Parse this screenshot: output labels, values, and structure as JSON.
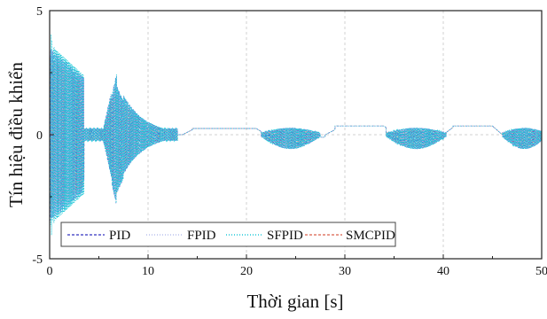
{
  "chart_data": {
    "type": "line",
    "title": "",
    "xlabel": "Thời gian [s]",
    "ylabel": "Tín hiệu điều khiển",
    "xlim": [
      0,
      50
    ],
    "ylim": [
      -5,
      5
    ],
    "xticks": [
      "0",
      "10",
      "20",
      "30",
      "40",
      "50"
    ],
    "yticks": [
      "-5",
      "0",
      "5"
    ],
    "grid": true,
    "legend_position": "bottom",
    "series": [
      {
        "name": "PID",
        "color": "#5555cc",
        "style": "dashed"
      },
      {
        "name": "FPID",
        "color": "#b8c0ee",
        "style": "dotted"
      },
      {
        "name": "SFPID",
        "color": "#1ec8d8",
        "style": "dotted"
      },
      {
        "name": "SMCPID",
        "color": "#e07b6a",
        "style": "dashed"
      }
    ]
  }
}
